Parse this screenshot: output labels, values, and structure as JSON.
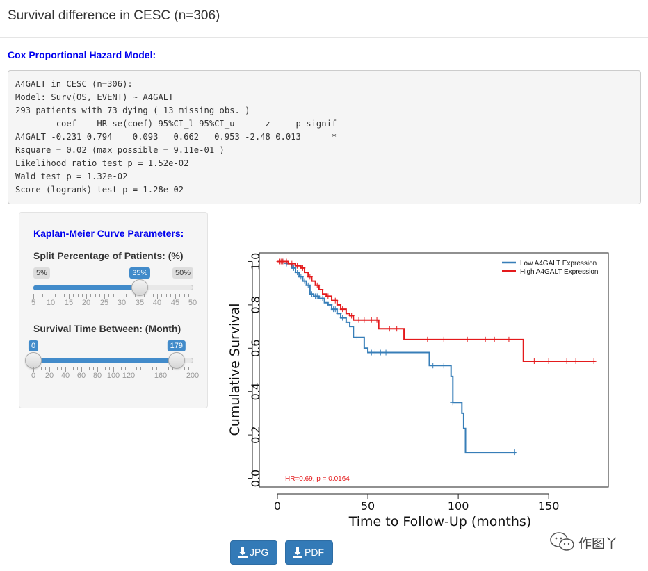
{
  "header": {
    "title": "Survival difference in CESC (n=306)"
  },
  "cox": {
    "heading": "Cox Proportional Hazard Model:",
    "lines": [
      "A4GALT in CESC (n=306):",
      "Model: Surv(OS, EVENT) ~ A4GALT",
      "293 patients with 73 dying ( 13 missing obs. )",
      "        coef    HR se(coef) 95%CI_l 95%CI_u      z     p signif",
      "A4GALT -0.231 0.794    0.093   0.662   0.953 -2.48 0.013      *",
      "Rsquare = 0.02 (max possible = 9.11e-01 )",
      "Likelihood ratio test p = 1.52e-02",
      "Wald test p = 1.32e-02",
      "Score (logrank) test p = 1.28e-02"
    ]
  },
  "params": {
    "heading": "Kaplan-Meier Curve Parameters:",
    "split": {
      "label": "Split Percentage of Patients: (%)",
      "min": 5,
      "max": 50,
      "value": 35,
      "min_label": "5%",
      "max_label": "50%",
      "value_label": "35%",
      "ticks": [
        "5",
        "10",
        "15",
        "20",
        "25",
        "30",
        "35",
        "40",
        "45",
        "50"
      ]
    },
    "time": {
      "label": "Survival Time Between: (Month)",
      "min": 0,
      "max": 200,
      "from": 0,
      "to": 179,
      "from_label": "0",
      "to_label": "179",
      "ticks": [
        "0",
        "20",
        "40",
        "60",
        "80",
        "100",
        "120",
        "",
        "160",
        "",
        "200"
      ]
    },
    "accent_color": "#428bca"
  },
  "chart_data": {
    "type": "line",
    "title": "",
    "xlabel": "Time to Follow-Up (months)",
    "ylabel": "Cumulative Survival",
    "xlim": [
      -10,
      183
    ],
    "ylim": [
      -0.04,
      1.04
    ],
    "xticks": [
      0,
      50,
      100,
      150
    ],
    "yticks": [
      0.0,
      0.2,
      0.4,
      0.6,
      0.8,
      1.0
    ],
    "xtick_labels": [
      "0",
      "50",
      "100",
      "150"
    ],
    "ytick_labels": [
      "0.0",
      "0.2",
      "0.4",
      "0.6",
      "0.8",
      "1.0"
    ],
    "annotation": "HR=0.69, p = 0.0164",
    "annotation_color": "#e41a1c",
    "legend_position": "top-right",
    "series": [
      {
        "name": "Low A4GALT Expression",
        "color": "#377eb8",
        "steps": [
          [
            0,
            1.0
          ],
          [
            5,
            0.99
          ],
          [
            8,
            0.97
          ],
          [
            10,
            0.95
          ],
          [
            12,
            0.93
          ],
          [
            14,
            0.91
          ],
          [
            16,
            0.89
          ],
          [
            18,
            0.85
          ],
          [
            20,
            0.84
          ],
          [
            23,
            0.83
          ],
          [
            26,
            0.81
          ],
          [
            28,
            0.8
          ],
          [
            30,
            0.78
          ],
          [
            33,
            0.76
          ],
          [
            35,
            0.74
          ],
          [
            38,
            0.72
          ],
          [
            40,
            0.7
          ],
          [
            42,
            0.65
          ],
          [
            48,
            0.6
          ],
          [
            50,
            0.58
          ],
          [
            84,
            0.52
          ],
          [
            96,
            0.47
          ],
          [
            97,
            0.35
          ],
          [
            102,
            0.3
          ],
          [
            103,
            0.23
          ],
          [
            104,
            0.12
          ],
          [
            132,
            0.12
          ]
        ],
        "censored": [
          [
            3,
            1.0
          ],
          [
            5,
            0.99
          ],
          [
            9,
            0.97
          ],
          [
            11,
            0.95
          ],
          [
            13,
            0.93
          ],
          [
            15,
            0.91
          ],
          [
            17,
            0.89
          ],
          [
            19,
            0.85
          ],
          [
            21,
            0.84
          ],
          [
            22,
            0.84
          ],
          [
            24,
            0.83
          ],
          [
            25,
            0.83
          ],
          [
            29,
            0.8
          ],
          [
            31,
            0.78
          ],
          [
            32,
            0.78
          ],
          [
            34,
            0.76
          ],
          [
            36,
            0.74
          ],
          [
            39,
            0.72
          ],
          [
            44,
            0.65
          ],
          [
            52,
            0.58
          ],
          [
            54,
            0.58
          ],
          [
            57,
            0.58
          ],
          [
            60,
            0.58
          ],
          [
            86,
            0.52
          ],
          [
            92,
            0.52
          ],
          [
            97,
            0.35
          ],
          [
            131,
            0.12
          ]
        ]
      },
      {
        "name": "High A4GALT Expression",
        "color": "#e41a1c",
        "steps": [
          [
            0,
            1.0
          ],
          [
            6,
            0.99
          ],
          [
            10,
            0.98
          ],
          [
            13,
            0.97
          ],
          [
            15,
            0.95
          ],
          [
            17,
            0.93
          ],
          [
            19,
            0.91
          ],
          [
            21,
            0.89
          ],
          [
            23,
            0.87
          ],
          [
            25,
            0.85
          ],
          [
            27,
            0.84
          ],
          [
            30,
            0.82
          ],
          [
            33,
            0.8
          ],
          [
            35,
            0.78
          ],
          [
            38,
            0.76
          ],
          [
            40,
            0.75
          ],
          [
            42,
            0.73
          ],
          [
            56,
            0.69
          ],
          [
            70,
            0.64
          ],
          [
            136,
            0.54
          ],
          [
            176,
            0.54
          ]
        ],
        "censored": [
          [
            1,
            1.0
          ],
          [
            2,
            1.0
          ],
          [
            3,
            1.0
          ],
          [
            5,
            1.0
          ],
          [
            8,
            0.99
          ],
          [
            11,
            0.98
          ],
          [
            14,
            0.97
          ],
          [
            18,
            0.93
          ],
          [
            22,
            0.89
          ],
          [
            24,
            0.87
          ],
          [
            28,
            0.84
          ],
          [
            32,
            0.82
          ],
          [
            36,
            0.78
          ],
          [
            41,
            0.75
          ],
          [
            45,
            0.73
          ],
          [
            48,
            0.73
          ],
          [
            52,
            0.73
          ],
          [
            55,
            0.73
          ],
          [
            62,
            0.69
          ],
          [
            66,
            0.69
          ],
          [
            83,
            0.64
          ],
          [
            92,
            0.64
          ],
          [
            105,
            0.64
          ],
          [
            115,
            0.64
          ],
          [
            120,
            0.64
          ],
          [
            128,
            0.64
          ],
          [
            142,
            0.54
          ],
          [
            150,
            0.54
          ],
          [
            160,
            0.54
          ],
          [
            165,
            0.54
          ],
          [
            175,
            0.54
          ]
        ]
      }
    ]
  },
  "buttons": {
    "jpg_label": "JPG",
    "pdf_label": "PDF"
  },
  "watermark": {
    "text": "作图丫"
  }
}
